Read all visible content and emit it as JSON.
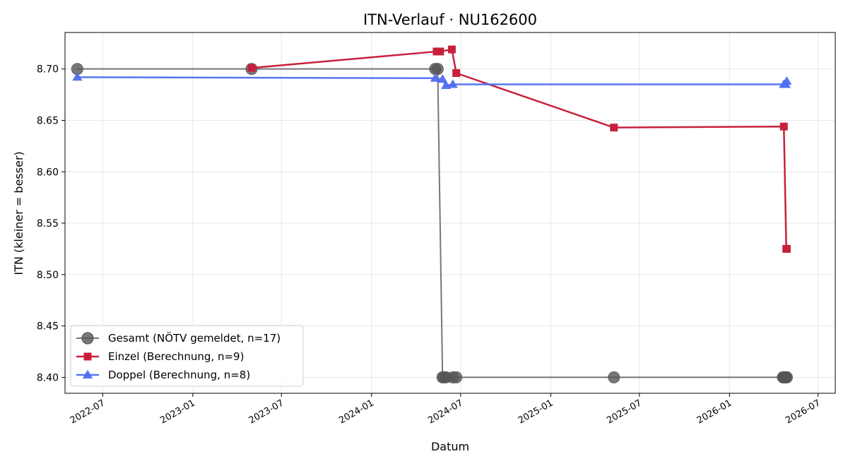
{
  "chart_data": {
    "type": "line",
    "title": "ITN-Verlauf · NU162600",
    "xlabel": "Datum",
    "ylabel": "ITN  (kleiner = besser)",
    "x_axis_type": "date",
    "xlim": [
      "2022-04-15",
      "2026-08-05"
    ],
    "ylim": [
      8.3845,
      8.7355
    ],
    "xticks": [
      "2022-07-01",
      "2023-01-01",
      "2023-07-01",
      "2024-01-01",
      "2024-07-01",
      "2025-01-01",
      "2025-07-01",
      "2026-01-01",
      "2026-07-01"
    ],
    "xtick_labels": [
      "2022-07",
      "2023-01",
      "2023-07",
      "2024-01",
      "2024-07",
      "2025-01",
      "2025-07",
      "2026-01",
      "2026-07"
    ],
    "yticks": [
      8.4,
      8.45,
      8.5,
      8.55,
      8.6,
      8.65,
      8.7
    ],
    "ytick_labels": [
      "8.40",
      "8.45",
      "8.50",
      "8.55",
      "8.60",
      "8.65",
      "8.70"
    ],
    "grid": true,
    "legend_position": "lower-left",
    "series": [
      {
        "name": "Gesamt (NÖTV gemeldet, n=17)",
        "color": "#555555",
        "marker": "circle",
        "points": [
          {
            "x": "2022-05-10",
            "y": 8.7
          },
          {
            "x": "2023-05-01",
            "y": 8.7
          },
          {
            "x": "2024-05-10",
            "y": 8.7
          },
          {
            "x": "2024-05-15",
            "y": 8.7
          },
          {
            "x": "2024-05-25",
            "y": 8.4
          },
          {
            "x": "2024-05-28",
            "y": 8.4
          },
          {
            "x": "2024-06-01",
            "y": 8.4
          },
          {
            "x": "2024-06-15",
            "y": 8.4
          },
          {
            "x": "2024-06-22",
            "y": 8.4
          },
          {
            "x": "2025-05-10",
            "y": 8.4
          },
          {
            "x": "2026-04-20",
            "y": 8.4
          },
          {
            "x": "2026-04-22",
            "y": 8.4
          },
          {
            "x": "2026-04-24",
            "y": 8.4
          },
          {
            "x": "2026-04-26",
            "y": 8.4
          },
          {
            "x": "2026-04-28",
            "y": 8.4
          }
        ]
      },
      {
        "name": "Einzel (Berechnung, n=9)",
        "color": "#c8203c",
        "marker": "square",
        "points": [
          {
            "x": "2023-05-01",
            "y": 8.701
          },
          {
            "x": "2024-05-13",
            "y": 8.717
          },
          {
            "x": "2024-05-20",
            "y": 8.717
          },
          {
            "x": "2024-06-13",
            "y": 8.719
          },
          {
            "x": "2024-06-22",
            "y": 8.696
          },
          {
            "x": "2025-05-10",
            "y": 8.643
          },
          {
            "x": "2026-04-22",
            "y": 8.644
          },
          {
            "x": "2026-04-27",
            "y": 8.525
          },
          {
            "x": "2026-04-28",
            "y": 8.525
          }
        ]
      },
      {
        "name": "Doppel (Berechnung, n=8)",
        "color": "#4f6ff0",
        "marker": "triangle",
        "points": [
          {
            "x": "2022-05-10",
            "y": 8.692
          },
          {
            "x": "2024-05-10",
            "y": 8.691
          },
          {
            "x": "2024-05-25",
            "y": 8.69
          },
          {
            "x": "2024-06-01",
            "y": 8.684
          },
          {
            "x": "2024-06-15",
            "y": 8.685
          },
          {
            "x": "2026-04-22",
            "y": 8.685
          },
          {
            "x": "2026-04-26",
            "y": 8.685
          },
          {
            "x": "2026-04-28",
            "y": 8.688
          }
        ]
      }
    ]
  }
}
